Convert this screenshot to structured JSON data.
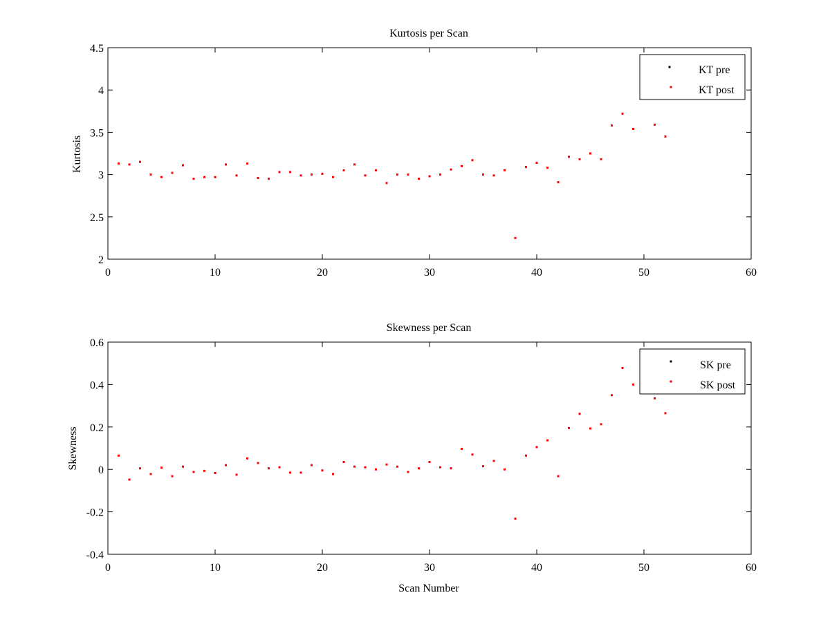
{
  "chart_data": [
    {
      "type": "scatter",
      "title": "Kurtosis per Scan",
      "xlabel": "",
      "ylabel": "Kurtosis",
      "xlim": [
        0,
        60
      ],
      "ylim": [
        2,
        4.5
      ],
      "xticks": [
        "0",
        "10",
        "20",
        "30",
        "40",
        "50",
        "60"
      ],
      "yticks": [
        "2",
        "2.5",
        "3",
        "3.5",
        "4",
        "4.5"
      ],
      "legend_position": "top-right",
      "grid": false,
      "series": [
        {
          "name": "KT pre",
          "color": "#000000",
          "x": [],
          "y": []
        },
        {
          "name": "KT post",
          "color": "#ff0000",
          "x": [
            1,
            2,
            3,
            4,
            5,
            6,
            7,
            8,
            9,
            10,
            11,
            12,
            13,
            14,
            15,
            16,
            17,
            18,
            19,
            20,
            21,
            22,
            23,
            24,
            25,
            26,
            27,
            28,
            29,
            30,
            31,
            32,
            33,
            34,
            35,
            36,
            37,
            38,
            39,
            40,
            41,
            42,
            43,
            44,
            45,
            46,
            47,
            48,
            49,
            51,
            52
          ],
          "y": [
            3.13,
            3.12,
            3.15,
            3.0,
            2.97,
            3.02,
            3.11,
            2.95,
            2.97,
            2.97,
            3.12,
            2.99,
            3.13,
            2.96,
            2.95,
            3.03,
            3.03,
            2.99,
            3.0,
            3.01,
            2.97,
            3.05,
            3.12,
            2.99,
            3.05,
            2.9,
            3.0,
            3.0,
            2.95,
            2.98,
            3.0,
            3.06,
            3.1,
            3.17,
            3.0,
            2.99,
            3.05,
            2.25,
            3.09,
            3.14,
            3.08,
            2.91,
            3.21,
            3.18,
            3.25,
            3.18,
            3.58,
            3.72,
            3.54,
            3.59,
            3.45
          ]
        }
      ]
    },
    {
      "type": "scatter",
      "title": "Skewness per Scan",
      "xlabel": "Scan Number",
      "ylabel": "Skewness",
      "xlim": [
        0,
        60
      ],
      "ylim": [
        -0.4,
        0.6
      ],
      "xticks": [
        "0",
        "10",
        "20",
        "30",
        "40",
        "50",
        "60"
      ],
      "yticks": [
        "-0.4",
        "-0.2",
        "0",
        "0.2",
        "0.4",
        "0.6"
      ],
      "legend_position": "top-right",
      "grid": false,
      "series": [
        {
          "name": "SK pre",
          "color": "#000000",
          "x": [],
          "y": []
        },
        {
          "name": "SK post",
          "color": "#ff0000",
          "x": [
            1,
            2,
            3,
            4,
            5,
            6,
            7,
            8,
            9,
            10,
            11,
            12,
            13,
            14,
            15,
            16,
            17,
            18,
            19,
            20,
            21,
            22,
            23,
            24,
            25,
            26,
            27,
            28,
            29,
            30,
            31,
            32,
            33,
            34,
            35,
            36,
            37,
            38,
            39,
            40,
            41,
            42,
            43,
            44,
            45,
            46,
            47,
            48,
            49,
            51,
            52
          ],
          "y": [
            0.065,
            -0.048,
            0.005,
            -0.022,
            0.008,
            -0.032,
            0.013,
            -0.012,
            -0.007,
            -0.017,
            0.02,
            -0.025,
            0.052,
            0.03,
            0.005,
            0.01,
            -0.015,
            -0.015,
            0.02,
            -0.005,
            -0.022,
            0.035,
            0.013,
            0.01,
            0.0,
            0.023,
            0.013,
            -0.012,
            0.005,
            0.035,
            0.01,
            0.005,
            0.097,
            0.07,
            0.015,
            0.04,
            0.0,
            -0.232,
            0.065,
            0.105,
            0.137,
            -0.032,
            0.195,
            0.262,
            0.193,
            0.213,
            0.35,
            0.478,
            0.4,
            0.335,
            0.265
          ]
        }
      ]
    }
  ]
}
